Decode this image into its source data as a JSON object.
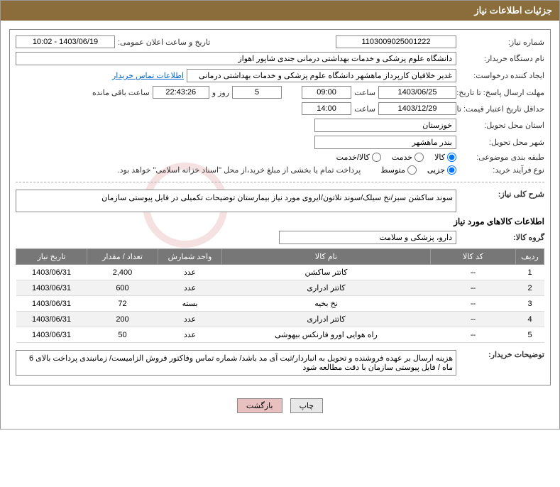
{
  "header": {
    "title": "جزئیات اطلاعات نیاز"
  },
  "fields": {
    "need_no_label": "شماره نیاز:",
    "need_no": "1103009025001222",
    "announce_label": "تاریخ و ساعت اعلان عمومی:",
    "announce_value": "1403/06/19 - 10:02",
    "buyer_label": "نام دستگاه خریدار:",
    "buyer_value": "دانشگاه علوم پزشکی و خدمات بهداشتی درمانی جندی شاپور اهواز",
    "requester_label": "ایجاد کننده درخواست:",
    "requester_value": "غدیر خلافیان کارپرداز ماهشهر دانشگاه علوم پزشکی و خدمات بهداشتی درمانی",
    "contact_link": "اطلاعات تماس خریدار",
    "deadline_label": "مهلت ارسال پاسخ: تا تاریخ:",
    "deadline_date": "1403/06/25",
    "time_label": "ساعت",
    "deadline_time": "09:00",
    "days_remain": "5",
    "days_text": "روز و",
    "hours_remain": "22:43:26",
    "remain_text": "ساعت باقی مانده",
    "validity_label": "حداقل تاریخ اعتبار قیمت: تا تاریخ:",
    "validity_date": "1403/12/29",
    "validity_time": "14:00",
    "province_label": "استان محل تحویل:",
    "province_value": "خوزستان",
    "city_label": "شهر محل تحویل:",
    "city_value": "بندر ماهشهر",
    "category_label": "طبقه بندی موضوعی:",
    "radio_goods": "کالا",
    "radio_service": "خدمت",
    "radio_both": "کالا/خدمت",
    "process_label": "نوع فرآیند خرید:",
    "radio_partial": "جزیی",
    "radio_medium": "متوسط",
    "payment_note": "پرداخت تمام یا بخشی از مبلغ خرید،از محل \"اسناد خزانه اسلامی\" خواهد بود.",
    "desc_label": "شرح کلی نیاز:",
    "desc_value": "سوند ساکشن سبز/نخ سیلک/سوند نلاتون/ایروی مورد نیاز بیمارستان توضیحات تکمیلی در فایل پیوستی سازمان",
    "goods_info_title": "اطلاعات کالاهای مورد نیاز",
    "goods_group_label": "گروه کالا:",
    "goods_group_value": "دارو، پزشکی و سلامت",
    "buyer_notes_label": "توضیحات خریدار:",
    "buyer_notes_value": "هزینه ارسال بر عهده فروشنده و تحویل به انباردار/ثبت آی مد باشد/ شماره تماس وفاکتور فروش الزامیست/ زمانبندی پرداخت بالای 6 ماه / فایل پیوستی سازمان با دقت مطالعه شود"
  },
  "table": {
    "headers": [
      "ردیف",
      "کد کالا",
      "نام کالا",
      "واحد شمارش",
      "تعداد / مقدار",
      "تاریخ نیاز"
    ],
    "rows": [
      [
        "1",
        "--",
        "کاتتر ساکشن",
        "عدد",
        "2,400",
        "1403/06/31"
      ],
      [
        "2",
        "--",
        "کاتتر ادراری",
        "عدد",
        "600",
        "1403/06/31"
      ],
      [
        "3",
        "--",
        "نخ بخیه",
        "بسته",
        "72",
        "1403/06/31"
      ],
      [
        "4",
        "--",
        "کاتتر ادراری",
        "عدد",
        "200",
        "1403/06/31"
      ],
      [
        "5",
        "--",
        "راه هوایی اورو فارنکس بیهوشی",
        "عدد",
        "50",
        "1403/06/31"
      ]
    ],
    "col_widths": [
      "40px",
      "120px",
      "auto",
      "90px",
      "100px",
      "100px"
    ]
  },
  "buttons": {
    "print": "چاپ",
    "back": "بازگشت"
  },
  "colors": {
    "header_bg": "#8a6d3b",
    "th_bg": "#777777",
    "btn_back_bg": "#e8c0c0"
  }
}
